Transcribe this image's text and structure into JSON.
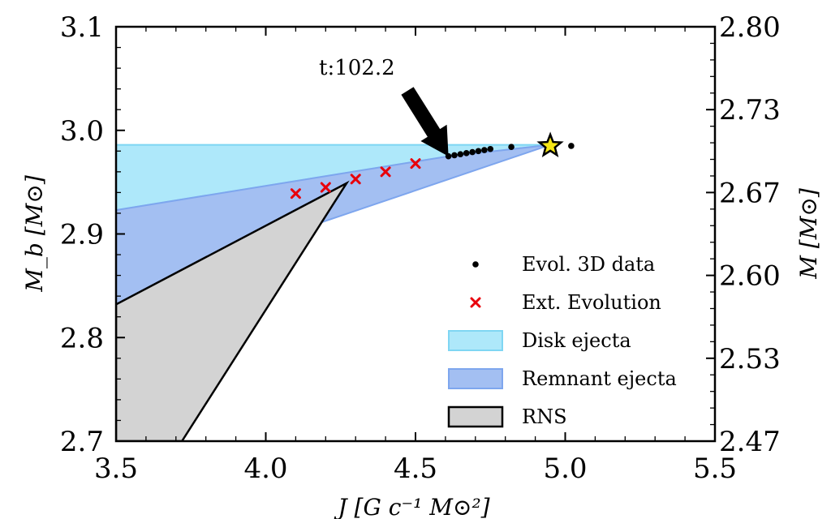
{
  "chart_data": {
    "type": "scatter",
    "xlabel": "J [G c⁻¹ M⊙²]",
    "ylabel": "M_b [M⊙]",
    "ylabel_right": "M [M⊙]",
    "xlim": [
      3.5,
      5.5
    ],
    "ylim": [
      2.7,
      3.1
    ],
    "x_ticks": [
      "3.5",
      "4.0",
      "4.5",
      "5.0",
      "5.5"
    ],
    "y_ticks": [
      "2.7",
      "2.8",
      "2.9",
      "3.0",
      "3.1"
    ],
    "y_ticks_right": [
      "2.47",
      "2.53",
      "2.60",
      "2.67",
      "2.73",
      "2.80"
    ],
    "annotation": {
      "text": "t:102.2",
      "x": 4.61,
      "y": 2.975
    },
    "star": {
      "x": 4.95,
      "y": 2.985,
      "color": "#f5e616"
    },
    "series": [
      {
        "name": "Evol. 3D data",
        "marker": "dot",
        "color": "#000000",
        "x": [
          4.61,
          4.63,
          4.65,
          4.67,
          4.69,
          4.71,
          4.73,
          4.75,
          4.82,
          4.95,
          5.02
        ],
        "y": [
          2.975,
          2.976,
          2.977,
          2.978,
          2.979,
          2.98,
          2.981,
          2.982,
          2.984,
          2.985,
          2.985
        ]
      },
      {
        "name": "Ext. Evolution",
        "marker": "x",
        "color": "#e8000b",
        "x": [
          4.1,
          4.2,
          4.3,
          4.4,
          4.5
        ],
        "y": [
          2.939,
          2.945,
          2.953,
          2.96,
          2.968
        ]
      }
    ],
    "regions": [
      {
        "name": "Disk ejecta",
        "fill": "#aee8fa",
        "stroke": "#7fd6f3",
        "points": [
          [
            3.5,
            2.986
          ],
          [
            4.95,
            2.986
          ],
          [
            4.61,
            2.975
          ],
          [
            3.5,
            2.923
          ]
        ]
      },
      {
        "name": "Remnant ejecta",
        "fill": "#a3bff2",
        "stroke": "#7ea6ee",
        "points": [
          [
            3.5,
            2.923
          ],
          [
            4.61,
            2.975
          ],
          [
            4.95,
            2.986
          ],
          [
            4.0,
            2.893
          ],
          [
            3.5,
            2.832
          ]
        ]
      },
      {
        "name": "RNS",
        "fill": "#d3d3d3",
        "stroke": "#000000",
        "points": [
          [
            3.5,
            2.832
          ],
          [
            4.27,
            2.949
          ],
          [
            3.72,
            2.7
          ],
          [
            3.5,
            2.7
          ]
        ]
      }
    ],
    "legend_position": "lower-right",
    "grid": false
  }
}
